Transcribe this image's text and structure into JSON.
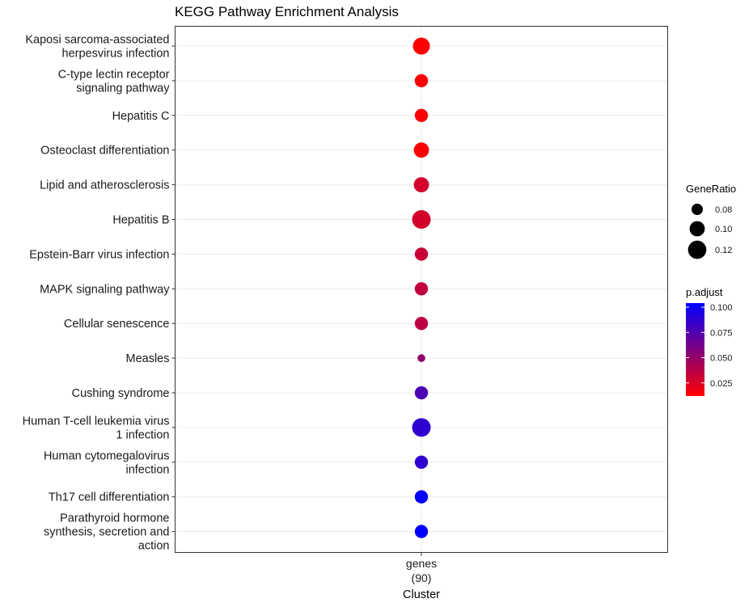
{
  "chart_data": {
    "type": "scatter",
    "title": "KEGG Pathway Enrichment Analysis",
    "xlabel": "Cluster",
    "x_categories": [
      {
        "name": "genes",
        "count": "(90)"
      }
    ],
    "points": [
      {
        "label": [
          "Kaposi sarcoma-associated",
          "herpesvirus infection"
        ],
        "gene_ratio": 0.111,
        "p_adjust": 0.012
      },
      {
        "label": [
          "C-type lectin receptor",
          "signaling pathway"
        ],
        "gene_ratio": 0.089,
        "p_adjust": 0.013
      },
      {
        "label": [
          "Hepatitis C"
        ],
        "gene_ratio": 0.089,
        "p_adjust": 0.013
      },
      {
        "label": [
          "Osteoclast differentiation"
        ],
        "gene_ratio": 0.1,
        "p_adjust": 0.013
      },
      {
        "label": [
          "Lipid and atherosclerosis"
        ],
        "gene_ratio": 0.1,
        "p_adjust": 0.028
      },
      {
        "label": [
          "Hepatitis B"
        ],
        "gene_ratio": 0.122,
        "p_adjust": 0.028
      },
      {
        "label": [
          "Epstein-Barr virus infection"
        ],
        "gene_ratio": 0.089,
        "p_adjust": 0.032
      },
      {
        "label": [
          "MAPK signaling pathway"
        ],
        "gene_ratio": 0.089,
        "p_adjust": 0.034
      },
      {
        "label": [
          "Cellular senescence"
        ],
        "gene_ratio": 0.089,
        "p_adjust": 0.036
      },
      {
        "label": [
          "Measles"
        ],
        "gene_ratio": 0.067,
        "p_adjust": 0.052
      },
      {
        "label": [
          "Cushing syndrome"
        ],
        "gene_ratio": 0.089,
        "p_adjust": 0.077
      },
      {
        "label": [
          "Human T-cell leukemia virus",
          "1 infection"
        ],
        "gene_ratio": 0.122,
        "p_adjust": 0.087
      },
      {
        "label": [
          "Human cytomegalovirus",
          "infection"
        ],
        "gene_ratio": 0.089,
        "p_adjust": 0.087
      },
      {
        "label": [
          "Th17 cell differentiation"
        ],
        "gene_ratio": 0.089,
        "p_adjust": 0.104
      },
      {
        "label": [
          "Parathyroid hormone",
          "synthesis, secretion and",
          "action"
        ],
        "gene_ratio": 0.089,
        "p_adjust": 0.104
      }
    ],
    "size_legend": {
      "title": "GeneRatio",
      "values": [
        0.08,
        0.1,
        0.12
      ],
      "labels": [
        "0.08",
        "0.10",
        "0.12"
      ]
    },
    "color_legend": {
      "title": "p.adjust",
      "range": [
        0.012,
        0.104
      ],
      "ticks": [
        0.1,
        0.075,
        0.05,
        0.025
      ],
      "tick_labels": [
        "0.100",
        "0.075",
        "0.050",
        "0.025"
      ],
      "low_color": "#ff0000",
      "high_color": "#0000ff"
    },
    "grid": true,
    "legend_position": "right"
  }
}
